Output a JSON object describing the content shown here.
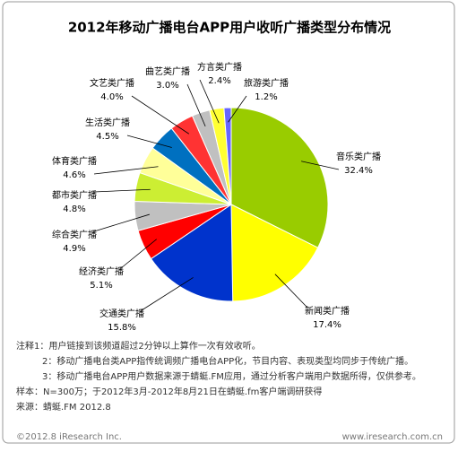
{
  "chart_data": {
    "type": "pie",
    "title": "2012年移动广播电台APP用户收听广播类型分布情况",
    "categories": [
      "音乐类广播",
      "新闻类广播",
      "交通类广播",
      "经济类广播",
      "综合类广播",
      "都市类广播",
      "体育类广播",
      "生活类广播",
      "文艺类广播",
      "曲艺类广播",
      "方言类广播",
      "旅游类广播"
    ],
    "values": [
      32.4,
      17.4,
      15.8,
      5.1,
      4.9,
      4.8,
      4.6,
      4.5,
      4.0,
      3.0,
      2.4,
      1.2
    ],
    "value_labels": [
      "32.4%",
      "17.4%",
      "15.8%",
      "5.1%",
      "4.9%",
      "4.8%",
      "4.6%",
      "4.5%",
      "4.0%",
      "3.0%",
      "2.4%",
      "1.2%"
    ],
    "colors": [
      "#99cc00",
      "#ffff00",
      "#0033cc",
      "#ff0000",
      "#c0c0c0",
      "#ccee33",
      "#ffff99",
      "#0070c0",
      "#ff3333",
      "#c0c0c0",
      "#ffff33",
      "#6666ff"
    ]
  },
  "notes": [
    "注释1：用户链接到该频道超过2分钟以上算作一次有效收听。",
    "2：移动广播电台类APP指传统调频广播电台APP化，节目内容、表现类型均同步于传统广播。",
    "3：移动广播电台APP用户数据来源于蜻蜓.FM应用，通过分析客户端用户数据所得，仅供参考。",
    "样本：N=300万；于2012年3月-2012年8月21日在蜻蜓.fm客户端调研获得",
    "来源：蜻蜓.FM 2012.8"
  ],
  "footer": {
    "copyright": "©2012.8 iResearch Inc.",
    "url": "www.iresearch.com.cn"
  }
}
